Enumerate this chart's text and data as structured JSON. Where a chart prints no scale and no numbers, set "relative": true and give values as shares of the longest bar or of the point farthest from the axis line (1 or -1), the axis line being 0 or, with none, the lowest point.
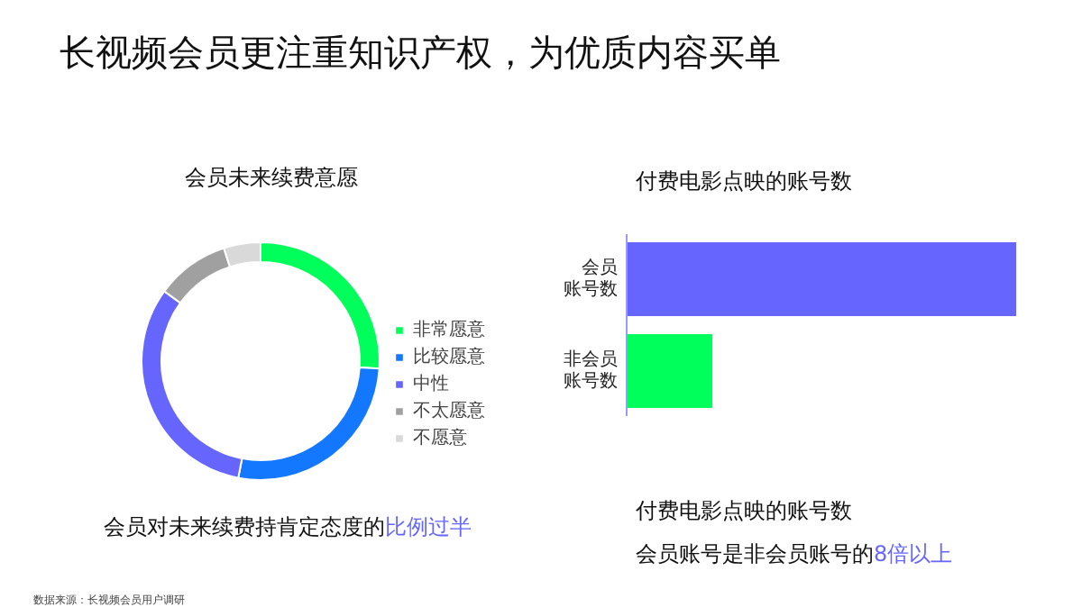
{
  "chart_data": [
    {
      "type": "donut",
      "title": "长视频会员更注重知识产权，为优质内容买单",
      "subtitle": "会员未来续费意愿",
      "categories": [
        "非常愿意",
        "比较愿意",
        "中性",
        "不太愿意",
        "不愿意"
      ],
      "values": [
        26,
        27,
        32,
        10,
        5
      ],
      "colors": [
        "#00ff5a",
        "#1478ff",
        "#6666ff",
        "#a0a0a0",
        "#d9d9d9"
      ],
      "legend": "right",
      "annotations": [
        "会员对未来续费持肯定态度的",
        "比例过半",
        "数据来源：长视频会员用户调研"
      ]
    },
    {
      "type": "bar",
      "orientation": "horizontal",
      "relative": true,
      "title": "付费电影点映的账号数",
      "categories": [
        "会员账号数",
        "非会员账号数"
      ],
      "values": [
        1,
        0.22
      ],
      "colors": [
        "#6666ff",
        "#00ff5a"
      ],
      "annotations": [
        "付费电影点映的账号数",
        "会员账号是非会员账号的",
        "8倍以上"
      ]
    }
  ]
}
